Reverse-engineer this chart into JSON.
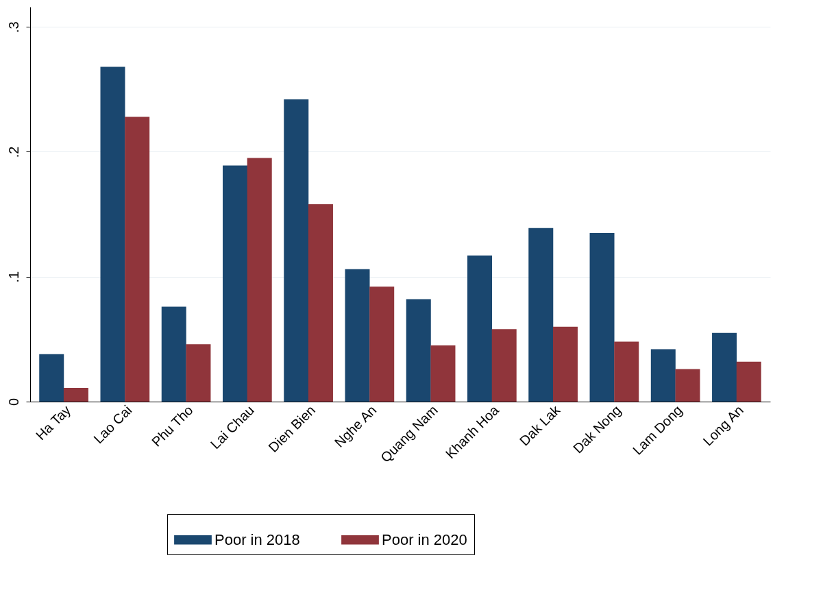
{
  "chart_data": {
    "type": "bar",
    "categories": [
      "Ha Tay",
      "Lao Cai",
      "Phu Tho",
      "Lai Chau",
      "Dien Bien",
      "Nghe An",
      "Quang Nam",
      "Khanh Hoa",
      "Dak Lak",
      "Dak Nong",
      "Lam Dong",
      "Long An"
    ],
    "series": [
      {
        "name": "Poor in 2018",
        "color": "#1a476f",
        "values": [
          0.038,
          0.268,
          0.076,
          0.189,
          0.242,
          0.106,
          0.082,
          0.117,
          0.139,
          0.135,
          0.042,
          0.055
        ]
      },
      {
        "name": "Poor in 2020",
        "color": "#90353b",
        "values": [
          0.011,
          0.228,
          0.046,
          0.195,
          0.158,
          0.092,
          0.045,
          0.058,
          0.06,
          0.048,
          0.026,
          0.032
        ]
      }
    ],
    "ylim": [
      0,
      0.316
    ],
    "yticks": [
      0,
      {
        "value": 0.1,
        "label": ".1"
      },
      {
        "value": 0.2,
        "label": ".2"
      },
      {
        "value": 0.3,
        "label": ".3"
      }
    ],
    "grid": "y",
    "legend": "bottom"
  }
}
